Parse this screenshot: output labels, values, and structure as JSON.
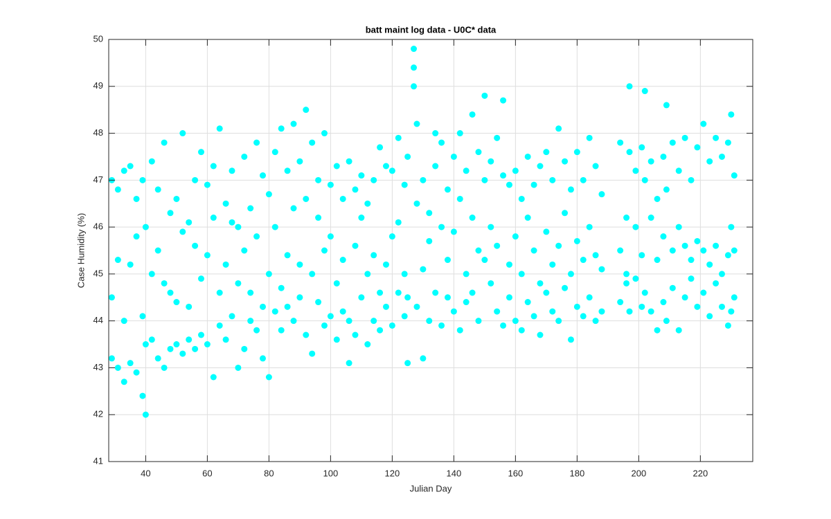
{
  "chart_data": {
    "type": "scatter",
    "title": "batt maint log data - U0C* data",
    "x_label": "Julian Day",
    "y_label": "Case Humidity (%)",
    "color": "#00ffff",
    "grid": true,
    "xlim": [
      28,
      237
    ],
    "ylim": [
      41,
      50
    ],
    "xticks": [
      40,
      60,
      80,
      100,
      120,
      140,
      160,
      180,
      200,
      220
    ],
    "yticks": [
      41,
      42,
      43,
      44,
      45,
      46,
      47,
      48,
      49,
      50
    ],
    "x": [
      29,
      29,
      29,
      31,
      31,
      31,
      33,
      33,
      33,
      35,
      35,
      35,
      37,
      37,
      37,
      39,
      39,
      39,
      40,
      40,
      40,
      42,
      42,
      42,
      44,
      44,
      44,
      46,
      46,
      46,
      48,
      48,
      48,
      50,
      50,
      50,
      52,
      52,
      52,
      54,
      54,
      54,
      56,
      56,
      56,
      58,
      58,
      58,
      60,
      60,
      60,
      62,
      62,
      62,
      64,
      64,
      64,
      66,
      66,
      66,
      68,
      68,
      68,
      70,
      70,
      70,
      72,
      72,
      72,
      74,
      74,
      74,
      76,
      76,
      76,
      78,
      78,
      78,
      80,
      80,
      80,
      82,
      82,
      82,
      84,
      84,
      84,
      86,
      86,
      86,
      88,
      88,
      88,
      90,
      90,
      90,
      92,
      92,
      92,
      94,
      94,
      94,
      96,
      96,
      96,
      98,
      98,
      98,
      100,
      100,
      100,
      102,
      102,
      102,
      104,
      104,
      104,
      106,
      106,
      106,
      108,
      108,
      108,
      110,
      110,
      110,
      112,
      112,
      112,
      114,
      114,
      114,
      116,
      116,
      116,
      118,
      118,
      118,
      120,
      120,
      120,
      122,
      122,
      122,
      124,
      124,
      124,
      125,
      125,
      125,
      127,
      127,
      127,
      128,
      128,
      128,
      130,
      130,
      130,
      132,
      132,
      132,
      134,
      134,
      134,
      136,
      136,
      136,
      138,
      138,
      138,
      140,
      140,
      140,
      142,
      142,
      142,
      144,
      144,
      144,
      146,
      146,
      146,
      148,
      148,
      148,
      150,
      150,
      150,
      152,
      152,
      152,
      154,
      154,
      154,
      156,
      156,
      156,
      158,
      158,
      158,
      160,
      160,
      160,
      162,
      162,
      162,
      164,
      164,
      164,
      166,
      166,
      166,
      168,
      168,
      168,
      170,
      170,
      170,
      172,
      172,
      172,
      174,
      174,
      174,
      176,
      176,
      176,
      178,
      178,
      178,
      180,
      180,
      180,
      182,
      182,
      182,
      184,
      184,
      184,
      186,
      186,
      186,
      188,
      188,
      188,
      194,
      194,
      194,
      196,
      196,
      196,
      197,
      197,
      197,
      199,
      199,
      199,
      201,
      201,
      201,
      202,
      202,
      202,
      204,
      204,
      204,
      206,
      206,
      206,
      208,
      208,
      208,
      209,
      209,
      209,
      211,
      211,
      211,
      213,
      213,
      213,
      215,
      215,
      215,
      217,
      217,
      217,
      219,
      219,
      219,
      221,
      221,
      221,
      223,
      223,
      223,
      225,
      225,
      225,
      227,
      227,
      227,
      229,
      229,
      229,
      230,
      230,
      230,
      231,
      231,
      231
    ],
    "values": [
      44.5,
      47.0,
      43.2,
      46.8,
      43.0,
      45.3,
      47.2,
      42.7,
      44.0,
      47.3,
      43.1,
      45.2,
      46.6,
      42.9,
      45.8,
      47.0,
      42.4,
      44.1,
      42.0,
      46.0,
      43.5,
      47.4,
      43.6,
      45.0,
      46.8,
      43.2,
      45.5,
      47.8,
      43.0,
      44.8,
      46.3,
      43.4,
      44.6,
      46.6,
      43.5,
      44.4,
      48.0,
      43.3,
      45.9,
      46.1,
      43.6,
      44.3,
      47.0,
      43.4,
      45.6,
      47.6,
      43.7,
      44.9,
      46.9,
      43.5,
      45.4,
      47.3,
      42.8,
      46.2,
      48.1,
      43.9,
      44.6,
      46.5,
      43.6,
      45.2,
      47.2,
      44.1,
      46.1,
      46.0,
      43.0,
      44.8,
      47.5,
      43.4,
      45.5,
      46.4,
      44.0,
      44.6,
      47.8,
      43.8,
      45.8,
      47.1,
      43.2,
      44.3,
      46.7,
      42.8,
      45.0,
      47.6,
      44.2,
      46.0,
      48.1,
      43.8,
      44.7,
      47.2,
      44.3,
      45.4,
      48.2,
      44.0,
      46.4,
      47.4,
      44.5,
      45.2,
      48.5,
      43.7,
      46.6,
      47.8,
      43.3,
      45.0,
      47.0,
      44.4,
      46.2,
      48.0,
      43.9,
      45.5,
      46.9,
      44.1,
      45.8,
      47.3,
      43.6,
      44.8,
      46.6,
      44.2,
      45.3,
      47.4,
      43.1,
      44.0,
      46.8,
      43.7,
      45.6,
      47.1,
      44.5,
      46.2,
      46.5,
      43.5,
      45.0,
      47.0,
      44.0,
      45.4,
      47.7,
      43.8,
      44.6,
      47.3,
      44.3,
      45.2,
      47.2,
      43.9,
      45.8,
      47.9,
      44.6,
      46.1,
      46.9,
      44.1,
      45.0,
      47.5,
      43.1,
      44.5,
      49.8,
      49.4,
      49.0,
      46.5,
      44.3,
      48.2,
      47.0,
      43.2,
      45.1,
      46.3,
      44.0,
      45.7,
      47.3,
      44.6,
      48.0,
      47.8,
      43.9,
      46.0,
      46.8,
      44.5,
      45.3,
      47.5,
      44.2,
      45.9,
      48.0,
      43.8,
      46.6,
      47.2,
      45.0,
      44.4,
      48.4,
      44.6,
      46.2,
      47.6,
      44.0,
      45.5,
      48.8,
      45.3,
      47.0,
      47.4,
      44.8,
      46.0,
      47.9,
      44.2,
      45.6,
      48.7,
      43.9,
      47.1,
      46.9,
      44.5,
      45.2,
      47.2,
      44.0,
      45.8,
      46.6,
      43.8,
      45.0,
      47.5,
      44.4,
      46.2,
      46.9,
      44.1,
      45.5,
      47.3,
      43.7,
      44.8,
      47.6,
      44.6,
      45.9,
      47.0,
      44.2,
      45.2,
      48.1,
      44.0,
      45.6,
      47.4,
      44.7,
      46.3,
      46.8,
      43.6,
      45.0,
      47.6,
      44.3,
      45.7,
      47.0,
      44.1,
      45.3,
      47.9,
      44.5,
      46.0,
      47.3,
      44.0,
      45.4,
      46.7,
      44.2,
      45.1,
      47.8,
      44.4,
      45.5,
      46.2,
      44.8,
      45.0,
      49.0,
      47.6,
      44.2,
      47.2,
      44.9,
      46.0,
      47.7,
      44.3,
      45.4,
      48.9,
      44.6,
      47.0,
      47.4,
      44.2,
      46.2,
      46.6,
      43.8,
      45.3,
      47.5,
      44.4,
      45.8,
      48.6,
      44.0,
      46.8,
      47.8,
      44.7,
      45.5,
      47.2,
      43.8,
      46.0,
      47.9,
      44.5,
      45.6,
      47.0,
      44.9,
      45.3,
      47.7,
      44.3,
      45.7,
      48.2,
      44.6,
      45.5,
      47.4,
      44.1,
      45.2,
      47.9,
      44.8,
      45.6,
      47.5,
      44.3,
      45.0,
      47.8,
      43.9,
      45.4,
      48.4,
      44.2,
      46.0,
      47.1,
      44.5,
      45.5
    ]
  }
}
